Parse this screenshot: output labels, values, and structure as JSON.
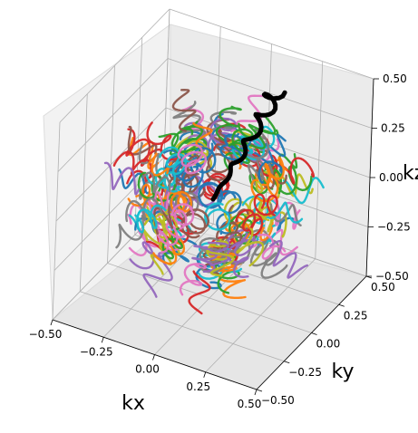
{
  "chart_data": {
    "type": "line",
    "projection": "3d",
    "description_source": "spiral k-space trajectories covering a ball of radius 0.5",
    "axes": {
      "x": {
        "label": "kx",
        "lim": [
          -0.5,
          0.5
        ],
        "ticks": [
          -0.5,
          -0.25,
          0.0,
          0.25,
          0.5
        ],
        "tick_labels": [
          "−0.50",
          "−0.25",
          "0.00",
          "0.25",
          "0.50"
        ]
      },
      "y": {
        "label": "ky",
        "lim": [
          -0.5,
          0.5
        ],
        "ticks": [
          -0.5,
          -0.25,
          0.0,
          0.25,
          0.5
        ],
        "tick_labels": [
          "−0.50",
          "−0.25",
          "0.00",
          "0.25",
          "0.50"
        ]
      },
      "z": {
        "label": "kz",
        "lim": [
          -0.5,
          0.5
        ],
        "ticks": [
          -0.5,
          -0.25,
          0.0,
          0.25,
          0.5
        ],
        "tick_labels": [
          "−0.50",
          "−0.25",
          "0.00",
          "0.25",
          "0.50"
        ]
      }
    },
    "grid": true,
    "sphere_radius": 0.5,
    "palette": [
      "#1f77b4",
      "#ff7f0e",
      "#2ca02c",
      "#d62728",
      "#9467bd",
      "#8c564b",
      "#e377c2",
      "#7f7f7f",
      "#bcbd22",
      "#17becf"
    ],
    "highlight_color": "#000000",
    "highlight_series": {
      "name": "",
      "points": [
        [
          0.0,
          0.0,
          0.0
        ],
        [
          0.02,
          0.05,
          0.06
        ],
        [
          0.04,
          0.1,
          0.12
        ],
        [
          0.06,
          0.15,
          0.18
        ],
        [
          0.08,
          0.2,
          0.25
        ],
        [
          0.1,
          0.25,
          0.32
        ],
        [
          0.12,
          0.28,
          0.38
        ],
        [
          0.13,
          0.3,
          0.43
        ]
      ]
    },
    "series_count": 160
  }
}
